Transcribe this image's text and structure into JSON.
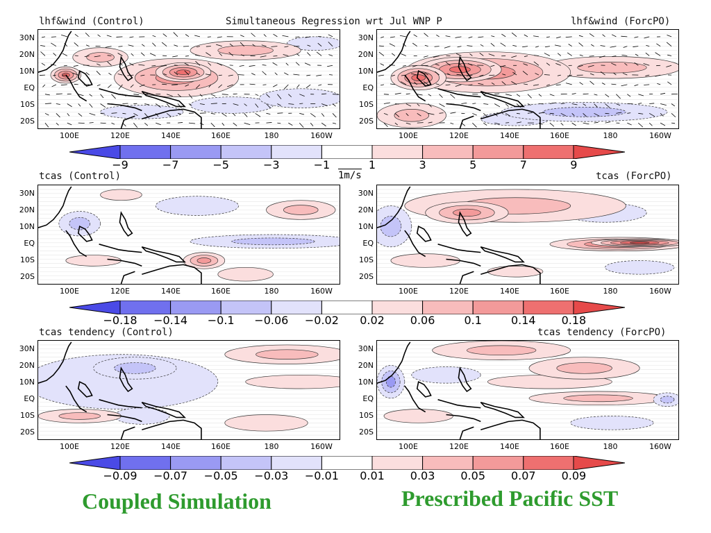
{
  "title": "Simultaneous Regression wrt Jul WNP P",
  "panels": [
    {
      "title": "lhf&wind (Control)"
    },
    {
      "title": "lhf&wind (ForcPO)"
    },
    {
      "title": "tcas (Control)"
    },
    {
      "title": "tcas (ForcPO)"
    },
    {
      "title": "tcas tendency (Control)"
    },
    {
      "title": "tcas tendency (ForcPO)"
    }
  ],
  "lat_labels": [
    "30N",
    "20N",
    "10N",
    "EQ",
    "10S",
    "20S"
  ],
  "lon_labels": [
    "100E",
    "120E",
    "140E",
    "160E",
    "180",
    "160W"
  ],
  "wind_reference": "1m/s",
  "colorbars": [
    {
      "labels": [
        "−9",
        "−7",
        "−5",
        "−3",
        "−1",
        "1",
        "3",
        "5",
        "7",
        "9"
      ]
    },
    {
      "labels": [
        "−0.18",
        "−0.14",
        "−0.1",
        "−0.06",
        "−0.02",
        "0.02",
        "0.06",
        "0.1",
        "0.14",
        "0.18"
      ]
    },
    {
      "labels": [
        "−0.09",
        "−0.07",
        "−0.05",
        "−0.03",
        "−0.01",
        "0.01",
        "0.03",
        "0.05",
        "0.07",
        "0.09"
      ]
    }
  ],
  "colorbar_colors": [
    "#4a4ae6",
    "#7070ee",
    "#9a9af3",
    "#c4c4f8",
    "#e2e2fb",
    "#ffffff",
    "#fbdede",
    "#f8bcbc",
    "#f39a9a",
    "#ee7070",
    "#e64a4a"
  ],
  "footer": {
    "left": "Coupled Simulation",
    "right": "Prescribed Pacific SST",
    "color": "#2e9b2e"
  }
}
